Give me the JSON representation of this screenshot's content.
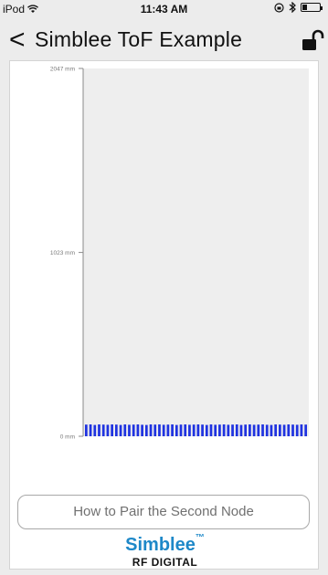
{
  "status_bar": {
    "device": "iPod",
    "time": "11:43 AM",
    "battery_level": 0.25
  },
  "nav": {
    "back_glyph": "<",
    "title": "Simblee ToF Example",
    "lock_icon": "unlock-icon"
  },
  "chart_data": {
    "type": "bar",
    "ylim": [
      0,
      2047
    ],
    "y_ticks": [
      {
        "value": 2047,
        "label": "2047 mm"
      },
      {
        "value": 1023,
        "label": "1023 mm"
      },
      {
        "value": 0,
        "label": "0 mm"
      }
    ],
    "bar_color": "#1f33e0",
    "plot_background": "#eeeeee",
    "values": [
      65,
      66,
      63,
      66,
      65,
      64,
      66,
      65,
      63,
      66,
      64,
      65,
      66,
      64,
      63,
      66,
      65,
      66,
      64,
      65,
      66,
      63,
      65,
      66,
      64,
      65,
      66,
      65,
      63,
      66,
      64,
      65,
      66,
      64,
      65,
      66,
      63,
      65,
      66,
      64,
      65,
      66,
      64,
      63,
      66,
      65,
      64,
      66,
      65,
      64,
      66,
      65
    ]
  },
  "pair_button": {
    "label": "How to Pair the Second Node"
  },
  "logo": {
    "name": "Simblee",
    "tm": "™",
    "sub": "RF DIGITAL",
    "color": "#1e88c8"
  }
}
